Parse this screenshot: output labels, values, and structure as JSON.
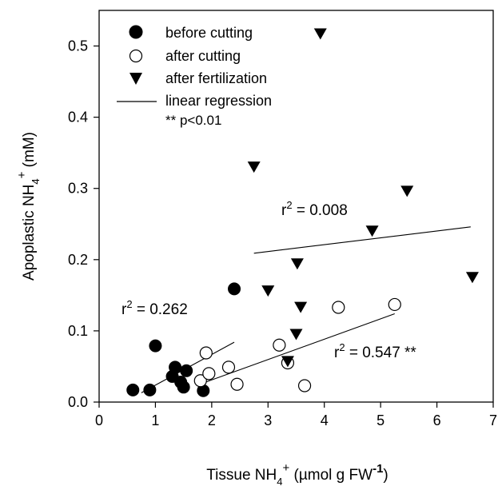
{
  "chart_data": {
    "type": "scatter",
    "xlabel": {
      "main": "Tissue NH",
      "sub": "4",
      "sup": "+",
      "rest": " (µmol g FW",
      "sup2": "-1",
      "end": ")"
    },
    "ylabel": {
      "main": "Apoplastic NH",
      "sub": "4",
      "sup": "+",
      "rest": " (mM)"
    },
    "xlim": [
      0,
      7
    ],
    "ylim": [
      0,
      0.55
    ],
    "xticks": [
      "0",
      "1",
      "2",
      "3",
      "4",
      "5",
      "6",
      "7"
    ],
    "yticks": [
      "0.0",
      "0.1",
      "0.2",
      "0.3",
      "0.4",
      "0.5"
    ],
    "legend": {
      "position": "top-left",
      "entries": [
        "before cutting",
        "after cutting",
        "after fertilization",
        "linear regression"
      ],
      "note": "** p<0.01"
    },
    "series": [
      {
        "name": "before cutting",
        "marker": "filled-circle",
        "points": [
          [
            0.6,
            0.017
          ],
          [
            0.9,
            0.017
          ],
          [
            1.0,
            0.079
          ],
          [
            1.3,
            0.036
          ],
          [
            1.35,
            0.049
          ],
          [
            1.45,
            0.028
          ],
          [
            1.5,
            0.021
          ],
          [
            1.55,
            0.044
          ],
          [
            1.85,
            0.016
          ],
          [
            2.4,
            0.159
          ]
        ]
      },
      {
        "name": "after cutting",
        "marker": "open-circle",
        "points": [
          [
            1.8,
            0.03
          ],
          [
            1.9,
            0.069
          ],
          [
            1.95,
            0.04
          ],
          [
            2.3,
            0.049
          ],
          [
            2.45,
            0.025
          ],
          [
            3.2,
            0.08
          ],
          [
            3.35,
            0.055
          ],
          [
            3.65,
            0.023
          ],
          [
            4.25,
            0.133
          ],
          [
            5.25,
            0.137
          ]
        ]
      },
      {
        "name": "after fertilization",
        "marker": "filled-down-triangle",
        "points": [
          [
            2.75,
            0.331
          ],
          [
            3.0,
            0.157
          ],
          [
            3.35,
            0.058
          ],
          [
            3.5,
            0.096
          ],
          [
            3.52,
            0.195
          ],
          [
            3.58,
            0.134
          ],
          [
            3.93,
            0.518
          ],
          [
            4.85,
            0.241
          ],
          [
            5.47,
            0.297
          ],
          [
            6.63,
            0.176
          ]
        ]
      }
    ],
    "regressions": [
      {
        "series": "before cutting",
        "from": [
          0.75,
          0.013
        ],
        "to": [
          2.4,
          0.084
        ],
        "label_main": "r",
        "label_sup": "2",
        "label_rest": " = 0.262"
      },
      {
        "series": "after cutting",
        "from": [
          1.75,
          0.024
        ],
        "to": [
          5.25,
          0.124
        ],
        "label_main": "r",
        "label_sup": "2",
        "label_rest": " = 0.547 **"
      },
      {
        "series": "after fertilization",
        "from": [
          2.75,
          0.209
        ],
        "to": [
          6.6,
          0.246
        ],
        "label_main": "r",
        "label_sup": "2",
        "label_rest": " = 0.008"
      }
    ]
  }
}
